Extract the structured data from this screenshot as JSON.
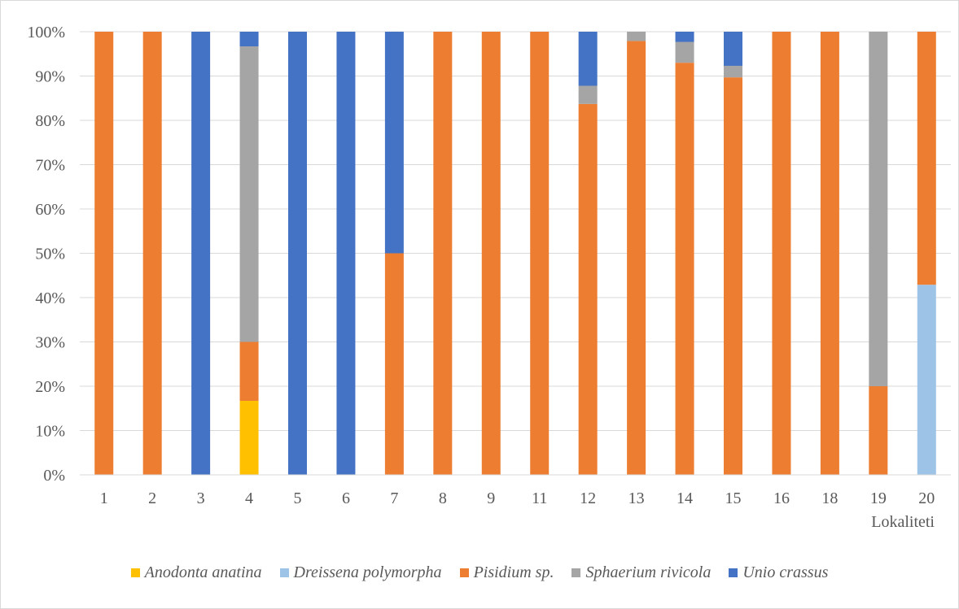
{
  "chart_data": {
    "type": "bar",
    "stacked": true,
    "normalized": true,
    "title": "",
    "xlabel": "Lokaliteti",
    "ylabel": "",
    "ylim": [
      0,
      100
    ],
    "y_ticks": [
      "0%",
      "10%",
      "20%",
      "30%",
      "40%",
      "50%",
      "60%",
      "70%",
      "80%",
      "90%",
      "100%"
    ],
    "grid": true,
    "legend_position": "bottom",
    "categories": [
      "1",
      "2",
      "3",
      "4",
      "5",
      "6",
      "7",
      "8",
      "9",
      "11",
      "12",
      "13",
      "14",
      "15",
      "16",
      "18",
      "19",
      "20"
    ],
    "series": [
      {
        "name": "Anodonta anatina",
        "color": "#ffc000",
        "values": [
          0,
          0,
          0,
          16.7,
          0,
          0,
          0,
          0,
          0,
          0,
          0,
          0,
          0,
          0,
          0,
          0,
          0,
          0
        ]
      },
      {
        "name": "Dreissena polymorpha",
        "color": "#9dc3e6",
        "values": [
          0,
          0,
          0,
          0,
          0,
          0,
          0,
          0,
          0,
          0,
          0,
          0,
          0,
          0,
          0,
          0,
          0,
          42.9
        ]
      },
      {
        "name": "Pisidium sp.",
        "color": "#ed7d31",
        "values": [
          100,
          100,
          0,
          13.3,
          0,
          0,
          50,
          100,
          100,
          100,
          83.7,
          97.9,
          93.0,
          89.7,
          100,
          100,
          20,
          57.1
        ]
      },
      {
        "name": "Sphaerium rivicola",
        "color": "#a5a5a5",
        "values": [
          0,
          0,
          0,
          66.7,
          0,
          0,
          0,
          0,
          0,
          0,
          4.1,
          2.1,
          4.7,
          2.6,
          0,
          0,
          80,
          0
        ]
      },
      {
        "name": "Unio crassus",
        "color": "#4472c4",
        "values": [
          0,
          0,
          100,
          3.3,
          100,
          100,
          50,
          0,
          0,
          0,
          12.2,
          0,
          2.3,
          7.7,
          0,
          0,
          0,
          0
        ]
      }
    ]
  }
}
